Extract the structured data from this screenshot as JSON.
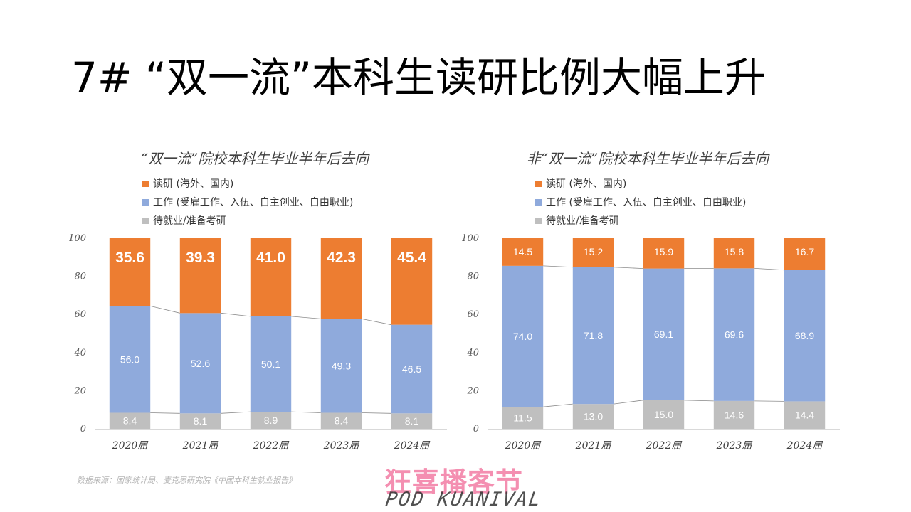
{
  "page": {
    "title": "7# “双一流”本科生读研比例大幅上升",
    "source": "数据来源：国家统计局、麦克思研究院《中国本科生就业报告》"
  },
  "logo": {
    "text_cn": "狂喜播客节",
    "text_en": "POD KUANIVAL"
  },
  "colors": {
    "study": "#ED7D31",
    "work": "#8FAADC",
    "wait": "#BFBFBF"
  },
  "chart_data": [
    {
      "type": "bar",
      "stacked": true,
      "title": "“双一流”院校本科生毕业半年后去向",
      "categories": [
        "2020届",
        "2021届",
        "2022届",
        "2023届",
        "2024届"
      ],
      "ylim": [
        0,
        100
      ],
      "yticks": [
        0,
        20,
        40,
        60,
        80,
        100
      ],
      "grid": false,
      "legend_position": "top-left",
      "label_style": "large-bold",
      "series": [
        {
          "name": "待就业/准备考研",
          "key": "wait",
          "values": [
            8.4,
            8.1,
            8.9,
            8.4,
            8.1
          ]
        },
        {
          "name": "工作 (受雇工作、入伍、自主创业、自由职业)",
          "key": "work",
          "values": [
            56.0,
            52.6,
            50.1,
            49.3,
            46.5
          ]
        },
        {
          "name": "读研 (海外、国内)",
          "key": "study",
          "values": [
            35.6,
            39.3,
            41.0,
            42.3,
            45.4
          ]
        }
      ],
      "labels": {
        "wait": [
          "8.4",
          "8.1",
          "8.9",
          "8.4",
          "8.1"
        ],
        "work": [
          "56.0",
          "52.6",
          "50.1",
          "49.3",
          "46.5"
        ],
        "study": [
          "35.6",
          "39.3",
          "41.0",
          "42.3",
          "45.4"
        ]
      }
    },
    {
      "type": "bar",
      "stacked": true,
      "title": "非“双一流”院校本科生毕业半年后去向",
      "categories": [
        "2020届",
        "2021届",
        "2022届",
        "2023届",
        "2024届"
      ],
      "ylim": [
        0,
        100
      ],
      "yticks": [
        0,
        20,
        40,
        60,
        80,
        100
      ],
      "grid": false,
      "legend_position": "top-left",
      "label_style": "normal",
      "series": [
        {
          "name": "待就业/准备考研",
          "key": "wait",
          "values": [
            11.5,
            13.0,
            15.0,
            14.6,
            14.4
          ]
        },
        {
          "name": "工作 (受雇工作、入伍、自主创业、自由职业)",
          "key": "work",
          "values": [
            74.0,
            71.8,
            69.1,
            69.6,
            68.9
          ]
        },
        {
          "name": "读研 (海外、国内)",
          "key": "study",
          "values": [
            14.5,
            15.2,
            15.9,
            15.8,
            16.7
          ]
        }
      ],
      "labels": {
        "wait": [
          "11.5",
          "13.0",
          "15.0",
          "14.6",
          "14.4"
        ],
        "work": [
          "74.0",
          "71.8",
          "69.1",
          "69.6",
          "68.9"
        ],
        "study": [
          "14.5",
          "15.2",
          "15.9",
          "15.8",
          "16.7"
        ]
      }
    }
  ]
}
